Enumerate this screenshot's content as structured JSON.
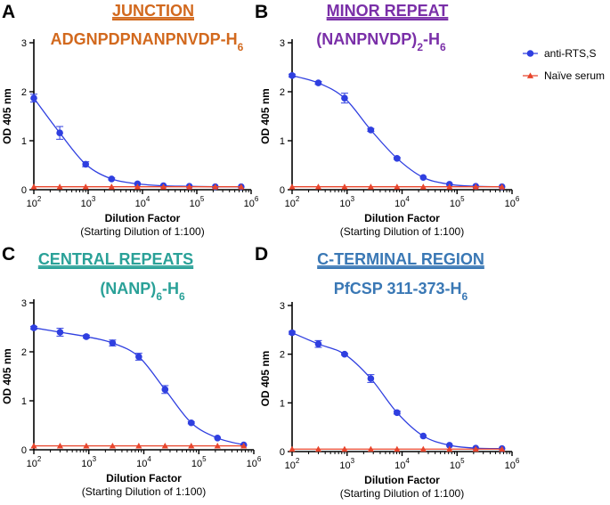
{
  "colors": {
    "anti": "#2f3fe0",
    "naive": "#e8452c",
    "panel_title": [
      "#d2691e",
      "#7a2fa8",
      "#2aa198",
      "#3a78b5"
    ]
  },
  "legend": {
    "position": "top-right",
    "entries": [
      {
        "label": "anti-RTS,S",
        "marker": "circle",
        "color": "#2f3fe0"
      },
      {
        "label": "Naïve serum",
        "marker": "triangle",
        "color": "#e8452c"
      }
    ]
  },
  "chart_data": [
    {
      "type": "line",
      "panel": "A",
      "title": "JUNCTION",
      "subtitle": "ADGNPDPNANPNVDP-H6",
      "subtitle_main": "ADGNPDPNANPNVDP-H",
      "subtitle_sub": "6",
      "subtitle_tail": "",
      "xlabel": "Dilution Factor",
      "xlabel_sub": "(Starting Dilution of 1:100)",
      "ylabel": "OD 405 nm",
      "xscale": "log",
      "xlim": [
        100,
        1000000
      ],
      "ylim": [
        0,
        3
      ],
      "yticks": [
        "0",
        "1",
        "2",
        "3"
      ],
      "xtick_base": "10",
      "xtick_exponents": [
        "2",
        "3",
        "4",
        "5",
        "6"
      ],
      "series": [
        {
          "name": "anti-RTS,S",
          "x": [
            100,
            300,
            900,
            2700,
            8100,
            24300,
            72900,
            218700,
            656100
          ],
          "y": [
            1.87,
            1.16,
            0.52,
            0.22,
            0.12,
            0.08,
            0.07,
            0.06,
            0.06
          ],
          "err": [
            0.08,
            0.13,
            0.05,
            0.02,
            0.01,
            0.01,
            0.01,
            0.01,
            0.01
          ]
        },
        {
          "name": "Naïve serum",
          "x": [
            100,
            300,
            900,
            2700,
            8100,
            24300,
            72900,
            218700,
            656100
          ],
          "y": [
            0.06,
            0.06,
            0.06,
            0.06,
            0.06,
            0.06,
            0.06,
            0.06,
            0.06
          ]
        }
      ]
    },
    {
      "type": "line",
      "panel": "B",
      "title": "MINOR REPEAT",
      "subtitle": "(NANPNVDP)2-H6",
      "subtitle_main": "(NANPNVDP)",
      "subtitle_sub": "2",
      "subtitle_tail": "-H6",
      "xlabel": "Dilution Factor",
      "xlabel_sub": "(Starting Dilution of 1:100)",
      "ylabel": "OD 405 nm",
      "xscale": "log",
      "xlim": [
        100,
        1000000
      ],
      "ylim": [
        0,
        3
      ],
      "yticks": [
        "0",
        "1",
        "2",
        "3"
      ],
      "xtick_base": "10",
      "xtick_exponents": [
        "2",
        "3",
        "4",
        "5",
        "6"
      ],
      "series": [
        {
          "name": "anti-RTS,S",
          "x": [
            100,
            300,
            900,
            2700,
            8100,
            24300,
            72900,
            218700,
            656100
          ],
          "y": [
            2.33,
            2.18,
            1.87,
            1.22,
            0.64,
            0.25,
            0.11,
            0.07,
            0.06
          ],
          "err": [
            0.03,
            0.03,
            0.1,
            0.03,
            0.02,
            0.01,
            0.01,
            0.01,
            0.01
          ]
        },
        {
          "name": "Naïve serum",
          "x": [
            100,
            300,
            900,
            2700,
            8100,
            24300,
            72900,
            218700,
            656100
          ],
          "y": [
            0.06,
            0.06,
            0.06,
            0.06,
            0.06,
            0.06,
            0.06,
            0.06,
            0.06
          ]
        }
      ]
    },
    {
      "type": "line",
      "panel": "C",
      "title": "CENTRAL REPEATS",
      "subtitle": "(NANP)6-H6",
      "subtitle_main": "(NANP)",
      "subtitle_sub": "6",
      "subtitle_tail": "-H6",
      "xlabel": "Dilution Factor",
      "xlabel_sub": "(Starting Dilution of 1:100)",
      "ylabel": "OD 405 nm",
      "xscale": "log",
      "xlim": [
        100,
        1000000
      ],
      "ylim": [
        0,
        3
      ],
      "yticks": [
        "0",
        "1",
        "2",
        "3"
      ],
      "xtick_base": "10",
      "xtick_exponents": [
        "2",
        "3",
        "4",
        "5",
        "6"
      ],
      "series": [
        {
          "name": "anti-RTS,S",
          "x": [
            100,
            300,
            900,
            2700,
            8100,
            24300,
            72900,
            218700,
            656100
          ],
          "y": [
            2.49,
            2.4,
            2.31,
            2.18,
            1.9,
            1.23,
            0.55,
            0.24,
            0.1
          ],
          "err": [
            0.03,
            0.08,
            0.03,
            0.06,
            0.07,
            0.08,
            0.02,
            0.01,
            0.01
          ]
        },
        {
          "name": "Naïve serum",
          "x": [
            100,
            300,
            900,
            2700,
            8100,
            24300,
            72900,
            218700,
            656100
          ],
          "y": [
            0.08,
            0.08,
            0.08,
            0.08,
            0.08,
            0.08,
            0.08,
            0.08,
            0.08
          ]
        }
      ]
    },
    {
      "type": "line",
      "panel": "D",
      "title": "C-TERMINAL REGION",
      "subtitle": "PfCSP 311-373-H6",
      "subtitle_main": "PfCSP 311-373-H",
      "subtitle_sub": "6",
      "subtitle_tail": "",
      "xlabel": "Dilution Factor",
      "xlabel_sub": "(Starting Dilution of 1:100)",
      "ylabel": "OD 405 nm",
      "xscale": "log",
      "xlim": [
        100,
        1000000
      ],
      "ylim": [
        0,
        3
      ],
      "yticks": [
        "0",
        "1",
        "2",
        "3"
      ],
      "xtick_base": "10",
      "xtick_exponents": [
        "2",
        "3",
        "4",
        "5",
        "6"
      ],
      "series": [
        {
          "name": "anti-RTS,S",
          "x": [
            100,
            300,
            900,
            2700,
            8100,
            24300,
            72900,
            218700,
            656100
          ],
          "y": [
            2.44,
            2.21,
            2.0,
            1.5,
            0.8,
            0.32,
            0.13,
            0.07,
            0.06
          ],
          "err": [
            0.03,
            0.07,
            0.02,
            0.08,
            0.03,
            0.01,
            0.01,
            0.01,
            0.01
          ]
        },
        {
          "name": "Naïve serum",
          "x": [
            100,
            300,
            900,
            2700,
            8100,
            24300,
            72900,
            218700,
            656100
          ],
          "y": [
            0.05,
            0.05,
            0.05,
            0.05,
            0.05,
            0.05,
            0.05,
            0.05,
            0.05
          ]
        }
      ]
    }
  ]
}
